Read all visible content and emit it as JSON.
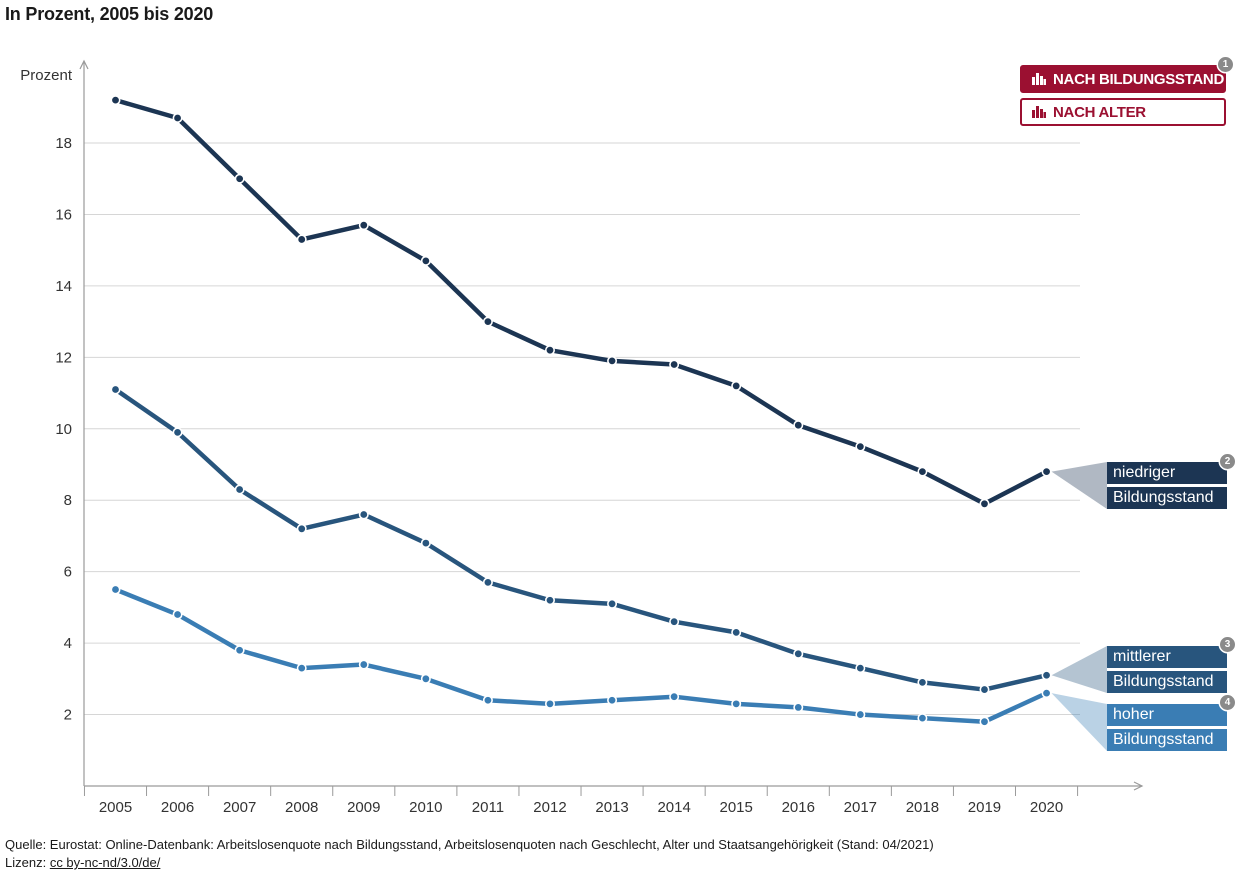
{
  "header": {
    "subtitle": "In Prozent, 2005 bis 2020"
  },
  "toggles": [
    {
      "label": "NACH BILDUNGSSTAND",
      "active": true,
      "badge": "1"
    },
    {
      "label": "NACH ALTER",
      "active": false
    }
  ],
  "chart_data": {
    "type": "line",
    "title": "",
    "ylabel": "Prozent",
    "xlabel": "",
    "ylim": [
      0,
      19.6
    ],
    "yticks": [
      2,
      4,
      6,
      8,
      10,
      12,
      14,
      16,
      18
    ],
    "grid": true,
    "x": [
      "2005",
      "2006",
      "2007",
      "2008",
      "2009",
      "2010",
      "2011",
      "2012",
      "2013",
      "2014",
      "2015",
      "2016",
      "2017",
      "2018",
      "2019",
      "2020"
    ],
    "series": [
      {
        "name": "niedriger Bildungsstand",
        "label_lines": [
          "niedriger",
          "Bildungsstand"
        ],
        "badge": "2",
        "color": "#1c3553",
        "values": [
          19.2,
          18.7,
          17.0,
          15.3,
          15.7,
          14.7,
          13.0,
          12.2,
          11.9,
          11.8,
          11.2,
          10.1,
          9.5,
          8.8,
          7.9,
          8.8
        ]
      },
      {
        "name": "mittlerer Bildungsstand",
        "label_lines": [
          "mittlerer",
          "Bildungsstand"
        ],
        "badge": "3",
        "color": "#28557d",
        "values": [
          11.1,
          9.9,
          8.3,
          7.2,
          7.6,
          6.8,
          5.7,
          5.2,
          5.1,
          4.6,
          4.3,
          3.7,
          3.3,
          2.9,
          2.7,
          3.1
        ]
      },
      {
        "name": "hoher Bildungsstand",
        "label_lines": [
          "hoher",
          "Bildungsstand"
        ],
        "badge": "4",
        "color": "#3a7db4",
        "values": [
          5.5,
          4.8,
          3.8,
          3.3,
          3.4,
          3.0,
          2.4,
          2.3,
          2.4,
          2.5,
          2.3,
          2.2,
          2.0,
          1.9,
          1.8,
          2.6
        ]
      }
    ]
  },
  "footer": {
    "source": "Quelle: Eurostat: Online-Datenbank: Arbeitslosenquote nach Bildungsstand, Arbeitslosenquoten nach Geschlecht, Alter und Staatsangehörigkeit (Stand: 04/2021)",
    "license_prefix": "Lizenz: ",
    "license_link": "cc by-nc-nd/3.0/de/"
  },
  "colors": {
    "accent": "#9b1031",
    "grid": "#d6d6d6",
    "axis": "#9a9a9a",
    "badge": "#8a8a8a"
  }
}
